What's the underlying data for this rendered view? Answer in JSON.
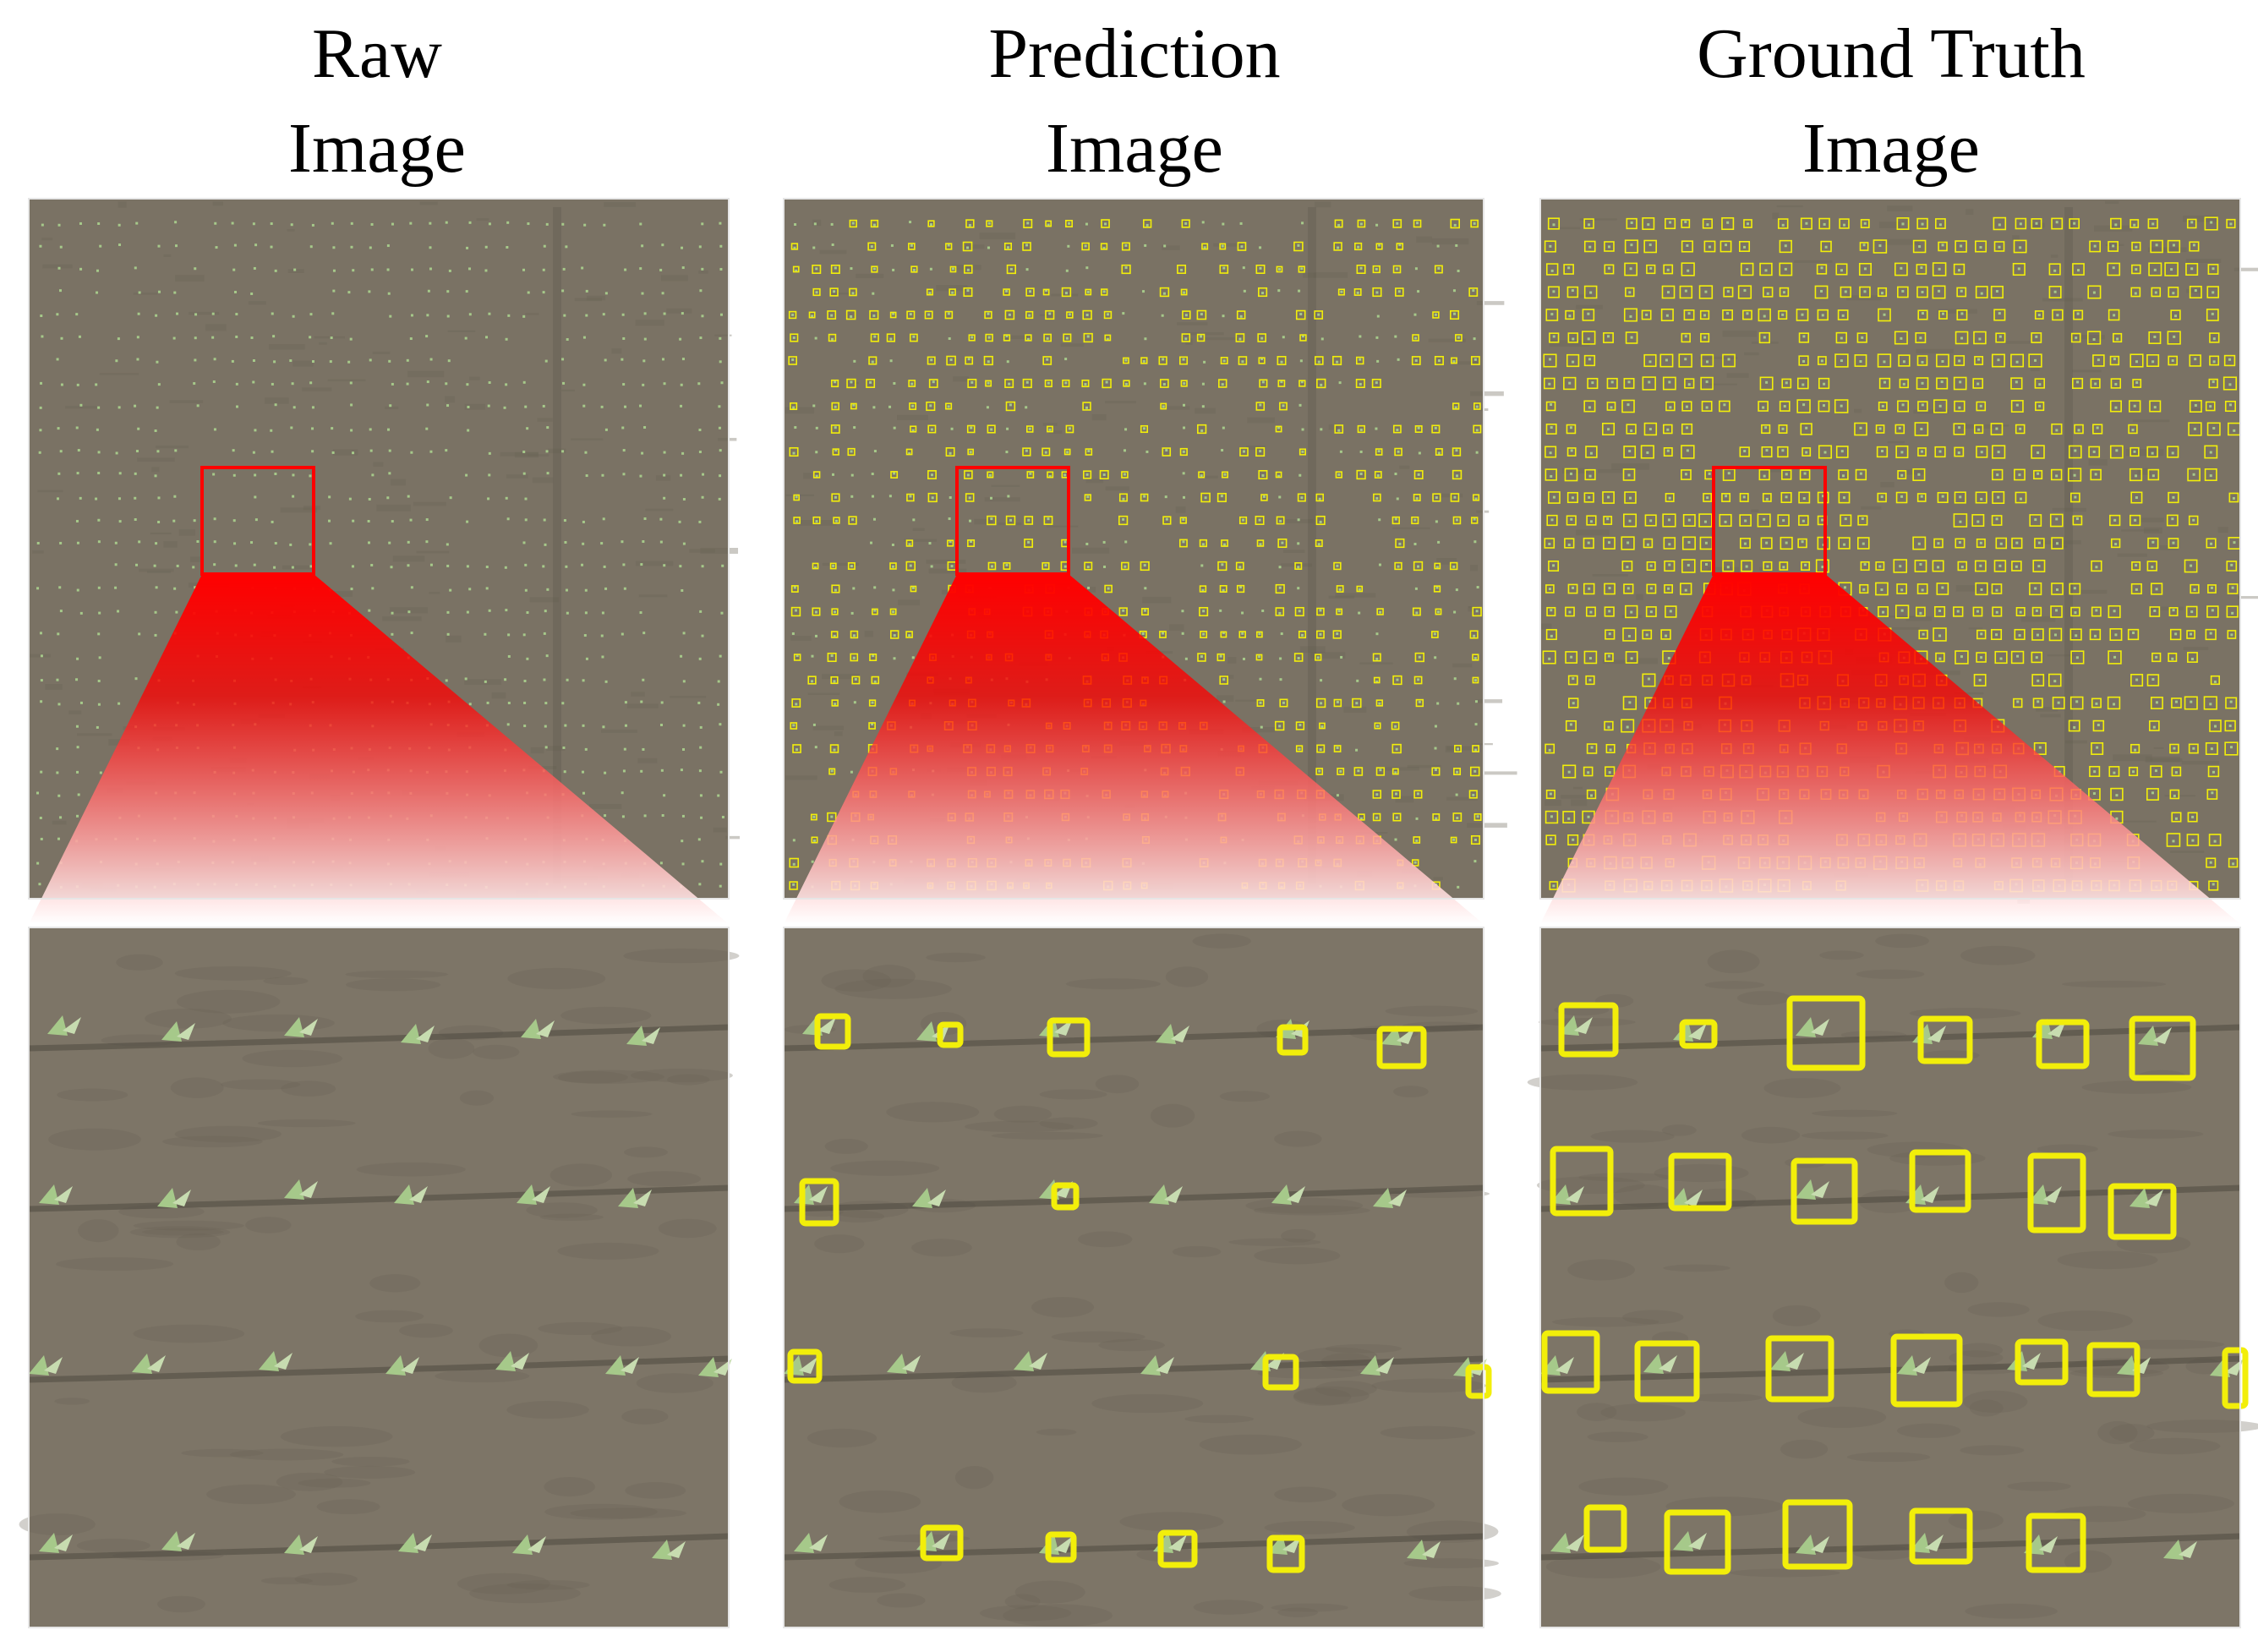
{
  "columns": [
    {
      "id": "raw",
      "title_line1": "Raw",
      "title_line2": "Image",
      "boxes": "none"
    },
    {
      "id": "prediction",
      "title_line1": "Prediction",
      "title_line2": "Image",
      "boxes": "prediction"
    },
    {
      "id": "ground-truth",
      "title_line1": "Ground Truth",
      "title_line2": "Image",
      "boxes": "ground-truth"
    }
  ],
  "colors": {
    "soil": "#7a7264",
    "soil_dark": "#6b6457",
    "seedling": "#a6c98a",
    "box": "#f2ee0a",
    "highlight": "#ff0000"
  }
}
